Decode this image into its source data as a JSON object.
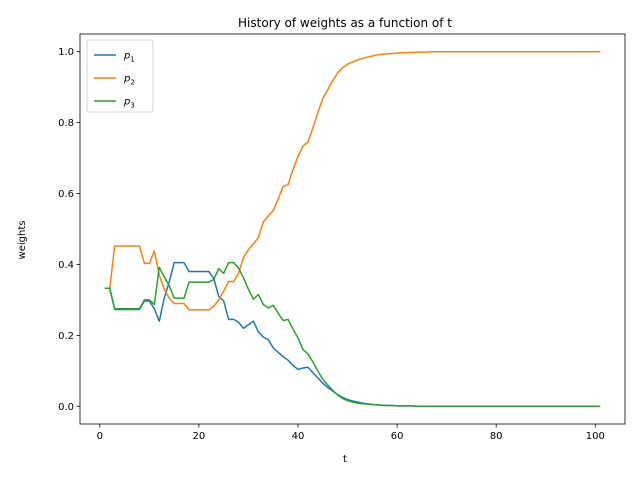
{
  "chart_data": {
    "type": "line",
    "title": "History of weights as a function of t",
    "xlabel": "t",
    "ylabel": "weights",
    "xlim": [
      -4,
      106
    ],
    "ylim": [
      -0.05,
      1.05
    ],
    "xticks": [
      0,
      20,
      40,
      60,
      80,
      100
    ],
    "yticks": [
      0.0,
      0.2,
      0.4,
      0.6,
      0.8,
      1.0
    ],
    "grid": false,
    "legend_position": "top-left",
    "series": [
      {
        "name": "p",
        "subscript": "1",
        "color": "#1f77b4",
        "x": [
          1,
          2,
          3,
          4,
          5,
          6,
          7,
          8,
          9,
          10,
          11,
          12,
          13,
          14,
          15,
          16,
          17,
          18,
          19,
          20,
          21,
          22,
          23,
          24,
          25,
          26,
          27,
          28,
          29,
          30,
          31,
          32,
          33,
          34,
          35,
          36,
          37,
          38,
          39,
          40,
          41,
          42,
          43,
          44,
          45,
          46,
          47,
          48,
          49,
          50,
          51,
          52,
          53,
          54,
          55,
          56,
          57,
          58,
          59,
          60,
          61,
          62,
          63,
          64,
          65,
          66,
          67,
          68,
          69,
          70,
          75,
          80,
          85,
          90,
          95,
          101
        ],
        "y": [
          0.333,
          0.333,
          0.273,
          0.273,
          0.273,
          0.273,
          0.273,
          0.273,
          0.297,
          0.297,
          0.275,
          0.24,
          0.305,
          0.35,
          0.405,
          0.405,
          0.405,
          0.38,
          0.38,
          0.38,
          0.38,
          0.38,
          0.36,
          0.31,
          0.297,
          0.245,
          0.245,
          0.237,
          0.22,
          0.23,
          0.24,
          0.21,
          0.195,
          0.188,
          0.165,
          0.152,
          0.14,
          0.13,
          0.115,
          0.104,
          0.108,
          0.11,
          0.095,
          0.08,
          0.065,
          0.053,
          0.043,
          0.033,
          0.025,
          0.019,
          0.015,
          0.012,
          0.009,
          0.007,
          0.005,
          0.004,
          0.003,
          0.002,
          0.002,
          0.001,
          0.001,
          0.001,
          0.001,
          0.0,
          0.0,
          0.0,
          0.0,
          0.0,
          0.0,
          0.0,
          0.0,
          0.0,
          0.0,
          0.0,
          0.0,
          0.0
        ]
      },
      {
        "name": "p",
        "subscript": "2",
        "color": "#ff7f0e",
        "x": [
          1,
          2,
          3,
          4,
          5,
          6,
          7,
          8,
          9,
          10,
          11,
          12,
          13,
          14,
          15,
          16,
          17,
          18,
          19,
          20,
          21,
          22,
          23,
          24,
          25,
          26,
          27,
          28,
          29,
          30,
          31,
          32,
          33,
          34,
          35,
          36,
          37,
          38,
          39,
          40,
          41,
          42,
          43,
          44,
          45,
          46,
          47,
          48,
          49,
          50,
          51,
          52,
          53,
          54,
          55,
          56,
          57,
          58,
          59,
          60,
          61,
          62,
          63,
          64,
          65,
          66,
          67,
          68,
          69,
          70,
          75,
          80,
          85,
          90,
          95,
          101
        ],
        "y": [
          0.333,
          0.333,
          0.452,
          0.452,
          0.452,
          0.452,
          0.452,
          0.452,
          0.403,
          0.403,
          0.438,
          0.37,
          0.33,
          0.305,
          0.29,
          0.29,
          0.29,
          0.272,
          0.272,
          0.272,
          0.272,
          0.272,
          0.282,
          0.3,
          0.325,
          0.352,
          0.352,
          0.375,
          0.42,
          0.442,
          0.458,
          0.476,
          0.52,
          0.537,
          0.552,
          0.585,
          0.62,
          0.625,
          0.668,
          0.705,
          0.734,
          0.745,
          0.785,
          0.828,
          0.868,
          0.893,
          0.918,
          0.94,
          0.955,
          0.965,
          0.971,
          0.977,
          0.981,
          0.985,
          0.988,
          0.991,
          0.993,
          0.994,
          0.995,
          0.996,
          0.997,
          0.998,
          0.998,
          0.999,
          0.999,
          0.999,
          1.0,
          1.0,
          1.0,
          1.0,
          1.0,
          1.0,
          1.0,
          1.0,
          1.0,
          1.0
        ]
      },
      {
        "name": "p",
        "subscript": "3",
        "color": "#2ca02c",
        "x": [
          1,
          2,
          3,
          4,
          5,
          6,
          7,
          8,
          9,
          10,
          11,
          12,
          13,
          14,
          15,
          16,
          17,
          18,
          19,
          20,
          21,
          22,
          23,
          24,
          25,
          26,
          27,
          28,
          29,
          30,
          31,
          32,
          33,
          34,
          35,
          36,
          37,
          38,
          39,
          40,
          41,
          42,
          43,
          44,
          45,
          46,
          47,
          48,
          49,
          50,
          51,
          52,
          53,
          54,
          55,
          56,
          57,
          58,
          59,
          60,
          61,
          62,
          63,
          64,
          65,
          66,
          67,
          68,
          69,
          70,
          75,
          80,
          85,
          90,
          95,
          101
        ],
        "y": [
          0.333,
          0.333,
          0.275,
          0.275,
          0.275,
          0.275,
          0.275,
          0.275,
          0.3,
          0.3,
          0.287,
          0.392,
          0.365,
          0.34,
          0.305,
          0.305,
          0.305,
          0.35,
          0.35,
          0.35,
          0.35,
          0.35,
          0.358,
          0.388,
          0.375,
          0.405,
          0.405,
          0.39,
          0.362,
          0.33,
          0.302,
          0.315,
          0.287,
          0.277,
          0.285,
          0.262,
          0.242,
          0.245,
          0.217,
          0.193,
          0.16,
          0.148,
          0.125,
          0.1,
          0.076,
          0.06,
          0.045,
          0.032,
          0.022,
          0.016,
          0.012,
          0.009,
          0.007,
          0.006,
          0.005,
          0.004,
          0.003,
          0.002,
          0.002,
          0.001,
          0.001,
          0.001,
          0.001,
          0.0,
          0.0,
          0.0,
          0.0,
          0.0,
          0.0,
          0.0,
          0.0,
          0.0,
          0.0,
          0.0,
          0.0,
          0.0
        ]
      }
    ]
  }
}
